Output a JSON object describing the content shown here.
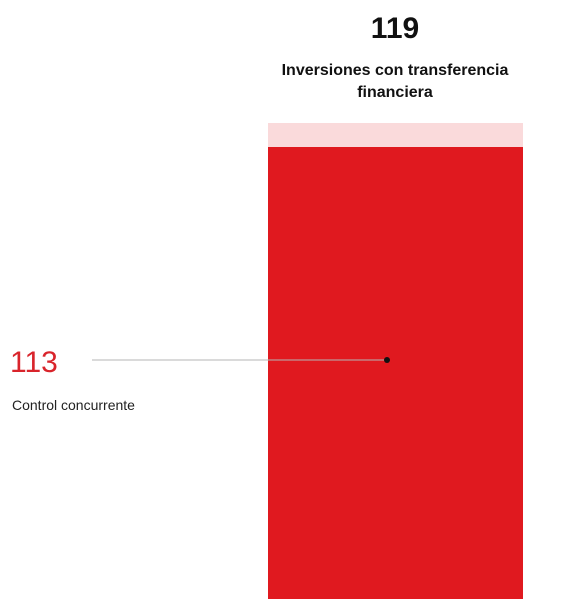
{
  "chart_data": {
    "type": "bar",
    "total": {
      "value": 119,
      "value_text": "119",
      "label_lines": [
        "Inversiones con transferencia",
        "financiera"
      ]
    },
    "part": {
      "value": 113,
      "value_text": "113",
      "label": "Control concurrente"
    },
    "colors": {
      "part": "#e0191f",
      "remainder": "#fadadb",
      "value_text": "#d9242b",
      "leader_line": "#b5b5b5",
      "dot": "#111111"
    }
  }
}
